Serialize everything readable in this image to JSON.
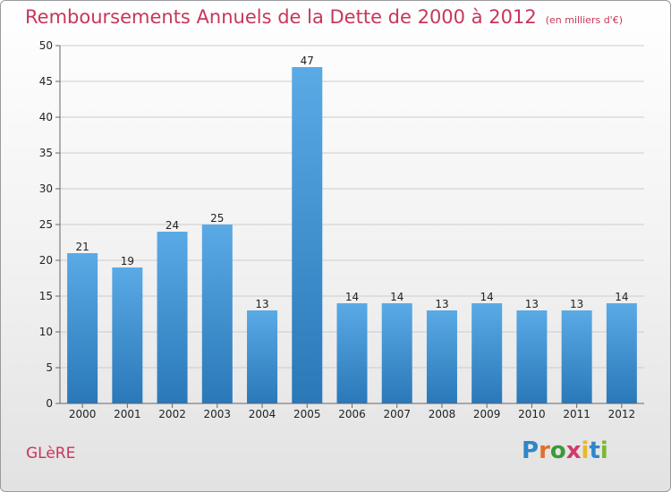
{
  "page": {
    "title": "Remboursements Annuels de la Dette de 2000 à 2012",
    "subtitle": "(en milliers d'€)",
    "commune": "GLèRE",
    "logo_text": "Proxiti"
  },
  "colors": {
    "title": "#c8365a",
    "bar_top": "#5aaae6",
    "bar_bottom": "#2a78b8",
    "grid": "#cccccc",
    "axis_text": "#222222"
  },
  "chart_data": {
    "type": "bar",
    "title": "Remboursements Annuels de la Dette de 2000 à 2012",
    "subtitle": "(en milliers d'€)",
    "xlabel": "",
    "ylabel": "",
    "categories": [
      "2000",
      "2001",
      "2002",
      "2003",
      "2004",
      "2005",
      "2006",
      "2007",
      "2008",
      "2009",
      "2010",
      "2011",
      "2012"
    ],
    "values": [
      21,
      19,
      24,
      25,
      13,
      47,
      14,
      14,
      13,
      14,
      13,
      13,
      14
    ],
    "ylim": [
      0,
      50
    ],
    "yticks": [
      0,
      5,
      10,
      15,
      20,
      25,
      30,
      35,
      40,
      45,
      50
    ],
    "grid": true,
    "legend": "none"
  }
}
